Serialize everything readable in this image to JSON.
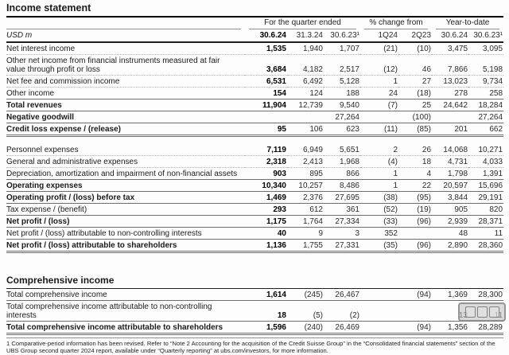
{
  "page_title": "Income statement",
  "income_table": {
    "unit_label": "USD m",
    "col_groups": [
      {
        "label": "For the quarter ended"
      },
      {
        "label": "% change from"
      },
      {
        "label": "Year-to-date"
      }
    ],
    "col_headers": [
      "30.6.24",
      "31.3.24",
      "30.6.23¹",
      "1Q24",
      "2Q23",
      "30.6.24",
      "30.6.23¹"
    ],
    "rows": [
      {
        "label": "Net interest income",
        "values": [
          "1,535",
          "1,940",
          "1,707",
          "(21)",
          "(10)",
          "3,475",
          "3,095"
        ],
        "emphasis": false,
        "rule": "dotted"
      },
      {
        "label": "Other net income from financial instruments measured at fair value through profit or loss",
        "values": [
          "3,684",
          "4,182",
          "2,517",
          "(12)",
          "46",
          "7,866",
          "5,198"
        ],
        "emphasis": false,
        "rule": "dotted"
      },
      {
        "label": "Net fee and commission income",
        "values": [
          "6,531",
          "6,492",
          "5,128",
          "1",
          "27",
          "13,023",
          "9,734"
        ],
        "emphasis": false,
        "rule": "dotted"
      },
      {
        "label": "Other income",
        "values": [
          "154",
          "124",
          "188",
          "24",
          "(18)",
          "278",
          "258"
        ],
        "emphasis": false,
        "rule": "dotted"
      },
      {
        "label": "Total revenues",
        "values": [
          "11,904",
          "12,739",
          "9,540",
          "(7)",
          "25",
          "24,642",
          "18,284"
        ],
        "emphasis": true,
        "rule": "solid"
      },
      {
        "label": "Negative goodwill",
        "values": [
          "",
          "",
          "27,264",
          "",
          "(100)",
          "",
          "27,264"
        ],
        "emphasis": true,
        "rule": "solid"
      },
      {
        "label": "Credit loss expense / (release)",
        "values": [
          "95",
          "106",
          "623",
          "(11)",
          "(85)",
          "201",
          "662"
        ],
        "emphasis": true,
        "rule": "double"
      },
      {
        "spacer": true,
        "label": "",
        "values": [
          "",
          "",
          "",
          "",
          "",
          "",
          ""
        ]
      },
      {
        "label": "Personnel expenses",
        "values": [
          "7,119",
          "6,949",
          "5,651",
          "2",
          "26",
          "14,068",
          "10,271"
        ],
        "emphasis": false,
        "rule": "dotted"
      },
      {
        "label": "General and administrative expenses",
        "values": [
          "2,318",
          "2,413",
          "1,968",
          "(4)",
          "18",
          "4,731",
          "4,033"
        ],
        "emphasis": false,
        "rule": "dotted"
      },
      {
        "label": "Depreciation, amortization and impairment of non-financial assets",
        "values": [
          "903",
          "895",
          "866",
          "1",
          "4",
          "1,798",
          "1,391"
        ],
        "emphasis": false,
        "rule": "dotted"
      },
      {
        "label": "Operating expenses",
        "values": [
          "10,340",
          "10,257",
          "8,486",
          "1",
          "22",
          "20,597",
          "15,696"
        ],
        "emphasis": true,
        "rule": "solid"
      },
      {
        "label": "Operating profit / (loss) before tax",
        "values": [
          "1,469",
          "2,376",
          "27,695",
          "(38)",
          "(95)",
          "3,844",
          "29,191"
        ],
        "emphasis": true,
        "rule": "solid"
      },
      {
        "label": "Tax expense / (benefit)",
        "values": [
          "293",
          "612",
          "361",
          "(52)",
          "(19)",
          "905",
          "820"
        ],
        "emphasis": false,
        "rule": "dotted"
      },
      {
        "label": "Net profit / (loss)",
        "values": [
          "1,175",
          "1,764",
          "27,334",
          "(33)",
          "(96)",
          "2,939",
          "28,371"
        ],
        "emphasis": true,
        "rule": "solid"
      },
      {
        "label": "Net profit / (loss) attributable to non-controlling interests",
        "values": [
          "40",
          "9",
          "3",
          "352",
          "",
          "48",
          "11"
        ],
        "emphasis": false,
        "rule": "dotted"
      },
      {
        "label": "Net profit / (loss) attributable to shareholders",
        "values": [
          "1,136",
          "1,755",
          "27,331",
          "(35)",
          "(96)",
          "2,890",
          "28,360"
        ],
        "emphasis": true,
        "rule": "double"
      }
    ]
  },
  "comprehensive_table": {
    "title": "Comprehensive income",
    "rows": [
      {
        "label": "Total comprehensive income",
        "values": [
          "1,614",
          "(245)",
          "26,467",
          "",
          "(94)",
          "1,369",
          "28,300"
        ],
        "emphasis": false,
        "rule": "solid"
      },
      {
        "label": "Total comprehensive income attributable to non-controlling interests",
        "values": [
          "18",
          "(5)",
          "(2)",
          "",
          "",
          "13",
          "11"
        ],
        "emphasis": false,
        "rule": "dotted"
      },
      {
        "label": "Total comprehensive income attributable to shareholders",
        "values": [
          "1,596",
          "(240)",
          "26,469",
          "",
          "(94)",
          "1,356",
          "28,289"
        ],
        "emphasis": true,
        "rule": "double"
      }
    ]
  },
  "footnote": "1 Comparative-period information has been revised. Refer to “Note 2 Accounting for the acquisition of the Credit Suisse Group” in the “Consolidated financial statements” section of the UBS Group second quarter 2024 report, available under “Quarterly reporting” at ubs.com/investors, for more information."
}
